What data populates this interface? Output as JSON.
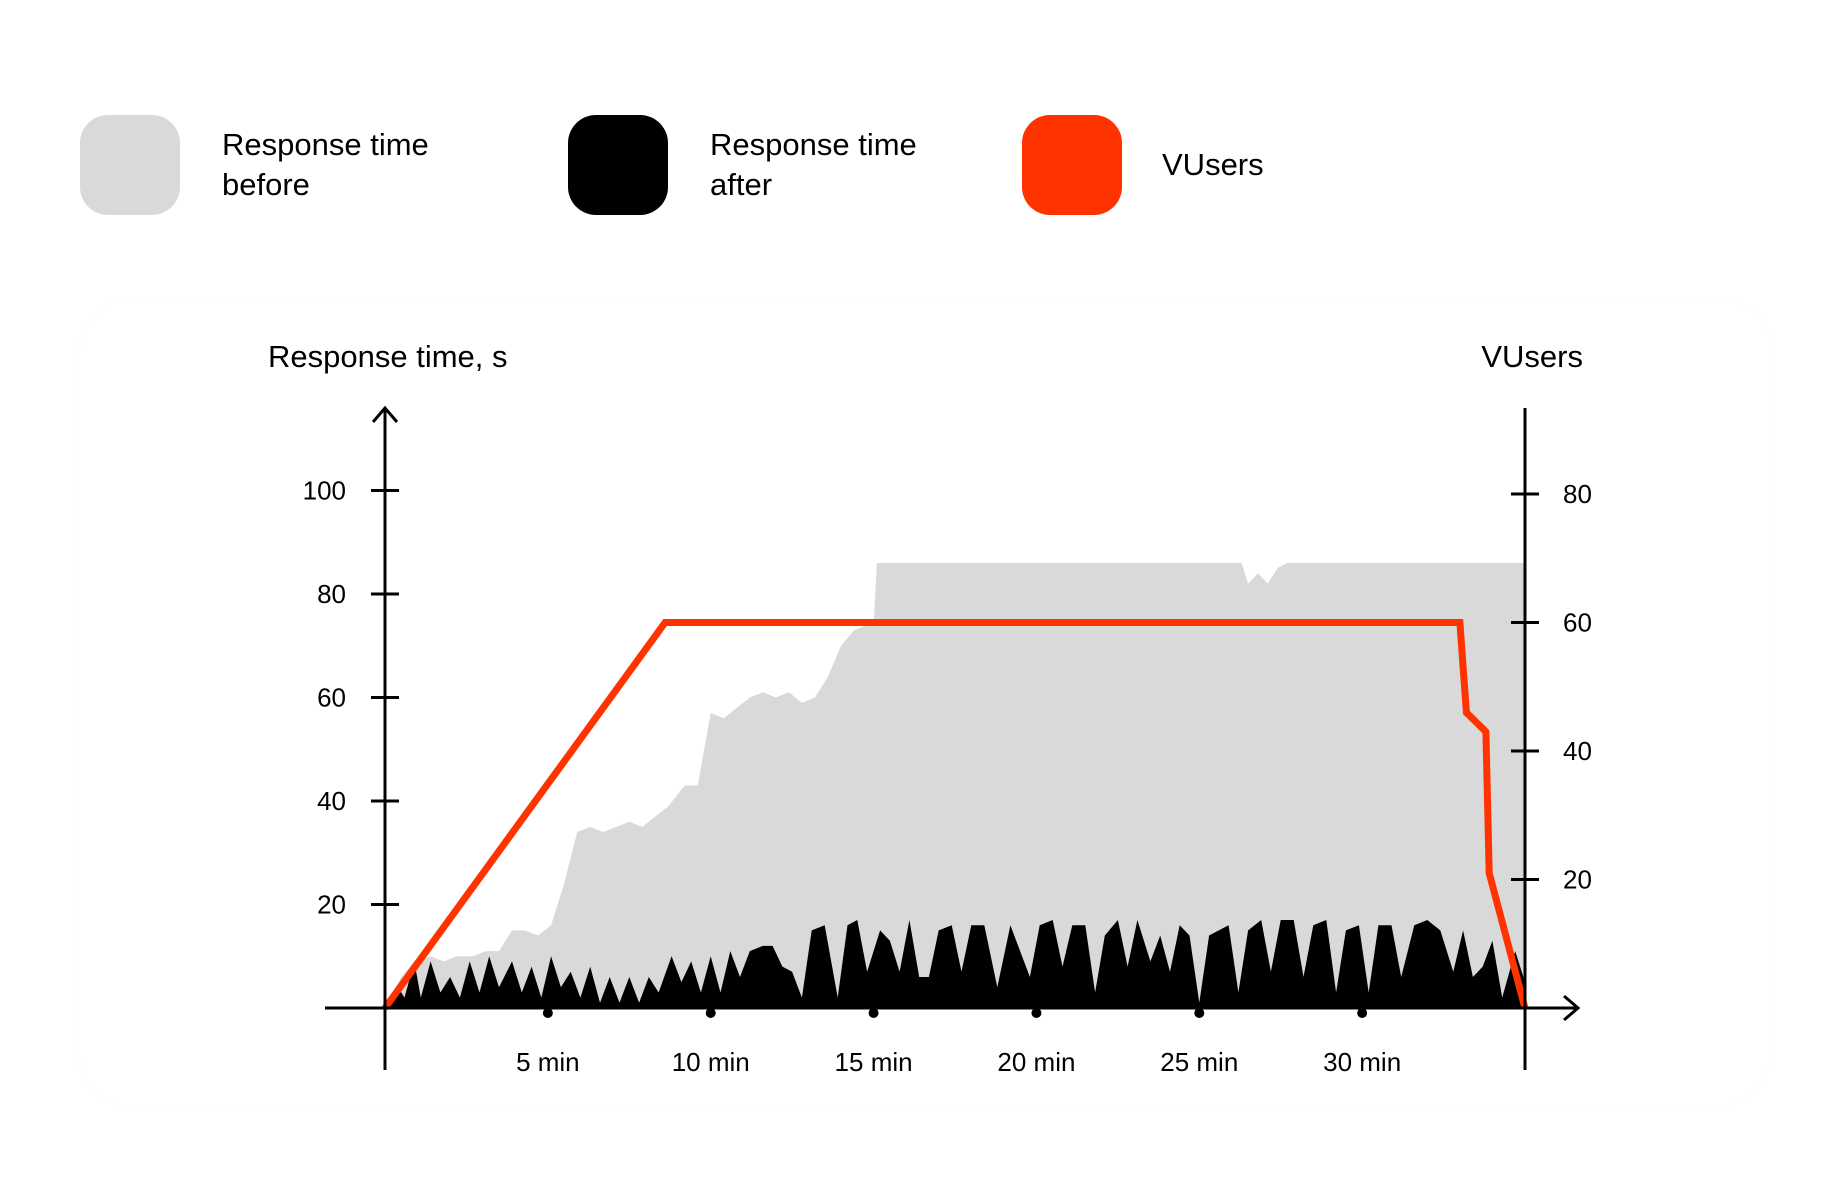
{
  "legend": {
    "items": [
      {
        "label": "Response time\nbefore",
        "color": "#d9d9d9"
      },
      {
        "label": "Response time\nafter",
        "color": "#000000"
      },
      {
        "label": "VUsers",
        "color": "#ff3300"
      }
    ]
  },
  "chart_data": {
    "type": "area",
    "left_axis": {
      "title": "Response time, s",
      "ticks": [
        20,
        40,
        60,
        80,
        100
      ],
      "ylim": [
        0,
        115
      ]
    },
    "right_axis": {
      "title": "VUsers",
      "ticks": [
        20,
        40,
        60,
        80
      ],
      "ylim": [
        0,
        93
      ]
    },
    "x_axis": {
      "unit": "min",
      "tick_values": [
        5,
        10,
        15,
        20,
        25,
        30
      ],
      "tick_labels": [
        "5 min",
        "10 min",
        "15 min",
        "20 min",
        "25 min",
        "30 min"
      ],
      "xlim": [
        0,
        35
      ]
    },
    "grid": false,
    "legend_placement": "top",
    "series": [
      {
        "name": "Response time before",
        "axis": "left",
        "style": "area",
        "color": "#d9d9d9",
        "points": [
          [
            0,
            0
          ],
          [
            0.5,
            6
          ],
          [
            0.9,
            9
          ],
          [
            1.4,
            10
          ],
          [
            1.8,
            9
          ],
          [
            2.2,
            10
          ],
          [
            2.7,
            10
          ],
          [
            3.1,
            11
          ],
          [
            3.5,
            11
          ],
          [
            3.9,
            15
          ],
          [
            4.3,
            15
          ],
          [
            4.7,
            14
          ],
          [
            5.1,
            16
          ],
          [
            5.5,
            24
          ],
          [
            5.9,
            34
          ],
          [
            6.3,
            35
          ],
          [
            6.7,
            34
          ],
          [
            7.1,
            35
          ],
          [
            7.5,
            36
          ],
          [
            7.9,
            35
          ],
          [
            8.3,
            37
          ],
          [
            8.7,
            39
          ],
          [
            9.2,
            43
          ],
          [
            9.6,
            43
          ],
          [
            10.0,
            57
          ],
          [
            10.4,
            56
          ],
          [
            10.8,
            58
          ],
          [
            11.2,
            60
          ],
          [
            11.6,
            61
          ],
          [
            12.0,
            60
          ],
          [
            12.4,
            61
          ],
          [
            12.8,
            59
          ],
          [
            13.2,
            60
          ],
          [
            13.6,
            64
          ],
          [
            14.0,
            70
          ],
          [
            14.4,
            73
          ],
          [
            14.8,
            74
          ],
          [
            15.0,
            74
          ],
          [
            15.1,
            86
          ],
          [
            26.3,
            86
          ],
          [
            26.5,
            82
          ],
          [
            26.8,
            84
          ],
          [
            27.1,
            82
          ],
          [
            27.4,
            85
          ],
          [
            27.7,
            86
          ],
          [
            35,
            86
          ],
          [
            35,
            0
          ]
        ]
      },
      {
        "name": "Response time after",
        "axis": "left",
        "style": "area",
        "color": "#000000",
        "points": [
          [
            0,
            0
          ],
          [
            0.4,
            4
          ],
          [
            0.6,
            2
          ],
          [
            0.9,
            9
          ],
          [
            1.1,
            2
          ],
          [
            1.4,
            9
          ],
          [
            1.7,
            3
          ],
          [
            2.0,
            6
          ],
          [
            2.3,
            2
          ],
          [
            2.6,
            9
          ],
          [
            2.9,
            3
          ],
          [
            3.2,
            10
          ],
          [
            3.5,
            4
          ],
          [
            3.9,
            9
          ],
          [
            4.2,
            3
          ],
          [
            4.5,
            8
          ],
          [
            4.8,
            2
          ],
          [
            5.1,
            10
          ],
          [
            5.4,
            4
          ],
          [
            5.7,
            7
          ],
          [
            6.0,
            2
          ],
          [
            6.3,
            8
          ],
          [
            6.6,
            1
          ],
          [
            6.9,
            6
          ],
          [
            7.2,
            1
          ],
          [
            7.5,
            6
          ],
          [
            7.8,
            1
          ],
          [
            8.1,
            6
          ],
          [
            8.4,
            3
          ],
          [
            8.8,
            10
          ],
          [
            9.1,
            5
          ],
          [
            9.4,
            9
          ],
          [
            9.7,
            3
          ],
          [
            10.0,
            10
          ],
          [
            10.3,
            3
          ],
          [
            10.6,
            11
          ],
          [
            10.9,
            6
          ],
          [
            11.2,
            11
          ],
          [
            11.6,
            12
          ],
          [
            11.9,
            12
          ],
          [
            12.2,
            8
          ],
          [
            12.5,
            7
          ],
          [
            12.8,
            2
          ],
          [
            13.1,
            15
          ],
          [
            13.5,
            16
          ],
          [
            13.9,
            2
          ],
          [
            14.2,
            16
          ],
          [
            14.5,
            17
          ],
          [
            14.8,
            7
          ],
          [
            15.2,
            15
          ],
          [
            15.5,
            13
          ],
          [
            15.8,
            7
          ],
          [
            16.1,
            17
          ],
          [
            16.4,
            6
          ],
          [
            16.7,
            6
          ],
          [
            17.0,
            15
          ],
          [
            17.4,
            16
          ],
          [
            17.7,
            7
          ],
          [
            18.0,
            16
          ],
          [
            18.4,
            16
          ],
          [
            18.8,
            4
          ],
          [
            19.2,
            16
          ],
          [
            19.5,
            11
          ],
          [
            19.8,
            6
          ],
          [
            20.1,
            16
          ],
          [
            20.5,
            17
          ],
          [
            20.8,
            8
          ],
          [
            21.1,
            16
          ],
          [
            21.5,
            16
          ],
          [
            21.8,
            3
          ],
          [
            22.1,
            14
          ],
          [
            22.5,
            17
          ],
          [
            22.8,
            8
          ],
          [
            23.1,
            17
          ],
          [
            23.5,
            9
          ],
          [
            23.8,
            14
          ],
          [
            24.1,
            7
          ],
          [
            24.4,
            16
          ],
          [
            24.7,
            14
          ],
          [
            25.0,
            1
          ],
          [
            25.3,
            14
          ],
          [
            25.6,
            15
          ],
          [
            25.9,
            16
          ],
          [
            26.2,
            3
          ],
          [
            26.5,
            15
          ],
          [
            26.9,
            17
          ],
          [
            27.2,
            7
          ],
          [
            27.5,
            17
          ],
          [
            27.9,
            17
          ],
          [
            28.2,
            6
          ],
          [
            28.5,
            16
          ],
          [
            28.9,
            17
          ],
          [
            29.2,
            3
          ],
          [
            29.5,
            15
          ],
          [
            29.9,
            16
          ],
          [
            30.2,
            3
          ],
          [
            30.5,
            16
          ],
          [
            30.9,
            16
          ],
          [
            31.2,
            6
          ],
          [
            31.6,
            16
          ],
          [
            32.0,
            17
          ],
          [
            32.4,
            15
          ],
          [
            32.8,
            7
          ],
          [
            33.1,
            15
          ],
          [
            33.4,
            6
          ],
          [
            33.7,
            8
          ],
          [
            34.0,
            13
          ],
          [
            34.3,
            2
          ],
          [
            34.7,
            11
          ],
          [
            35,
            5
          ],
          [
            35,
            0
          ]
        ]
      },
      {
        "name": "VUsers",
        "axis": "right",
        "style": "line",
        "color": "#ff3300",
        "points": [
          [
            0,
            0
          ],
          [
            8.6,
            60
          ],
          [
            33.0,
            60
          ],
          [
            33.2,
            46
          ],
          [
            33.8,
            43
          ],
          [
            33.9,
            21
          ],
          [
            35,
            0
          ]
        ]
      }
    ]
  }
}
